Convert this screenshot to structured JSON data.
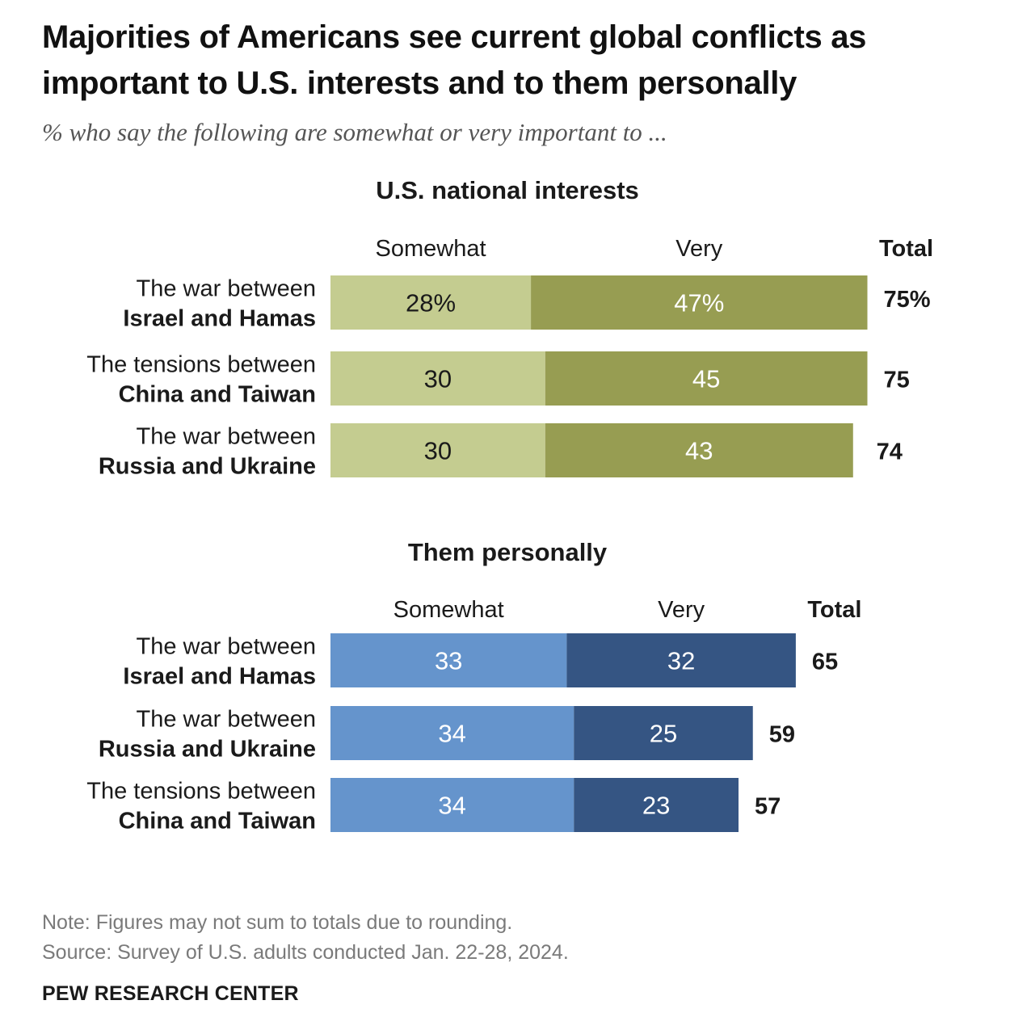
{
  "title": "Majorities of Americans see current global conflicts as important to U.S. interests and to them personally",
  "subtitle": "% who say the following are somewhat or very important to ...",
  "note": "Note: Figures may not sum to totals due to rounding.",
  "source": "Source: Survey of U.S. adults conducted Jan. 22-28, 2024.",
  "brand": "PEW RESEARCH CENTER",
  "colors": {
    "us_somewhat": "#c4cc90",
    "us_very": "#979d52",
    "personal_somewhat": "#6594cc",
    "personal_very": "#355583"
  },
  "chart_data": [
    {
      "type": "bar",
      "orientation": "horizontal",
      "stacked": true,
      "title": "U.S. national interests",
      "column_headers": {
        "somewhat": "Somewhat",
        "very": "Very",
        "total": "Total"
      },
      "categories": [
        {
          "line1": "The war between",
          "line2": "Israel and Hamas"
        },
        {
          "line1": "The tensions between",
          "line2": "China and Taiwan"
        },
        {
          "line1": "The war between",
          "line2": "Russia and Ukraine"
        }
      ],
      "series": [
        {
          "name": "Somewhat",
          "values": [
            28,
            30,
            30
          ],
          "labels": [
            "28%",
            "30",
            "30"
          ]
        },
        {
          "name": "Very",
          "values": [
            47,
            45,
            43
          ],
          "labels": [
            "47%",
            "45",
            "43"
          ]
        }
      ],
      "totals": [
        75,
        75,
        74
      ],
      "total_labels": [
        "75%",
        "75",
        "74"
      ]
    },
    {
      "type": "bar",
      "orientation": "horizontal",
      "stacked": true,
      "title": "Them personally",
      "column_headers": {
        "somewhat": "Somewhat",
        "very": "Very",
        "total": "Total"
      },
      "categories": [
        {
          "line1": "The war between",
          "line2": "Israel and Hamas"
        },
        {
          "line1": "The war between",
          "line2": "Russia and Ukraine"
        },
        {
          "line1": "The tensions between",
          "line2": "China and Taiwan"
        }
      ],
      "series": [
        {
          "name": "Somewhat",
          "values": [
            33,
            34,
            34
          ],
          "labels": [
            "33",
            "34",
            "34"
          ]
        },
        {
          "name": "Very",
          "values": [
            32,
            25,
            23
          ],
          "labels": [
            "32",
            "25",
            "23"
          ]
        }
      ],
      "totals": [
        65,
        59,
        57
      ],
      "total_labels": [
        "65",
        "59",
        "57"
      ]
    }
  ]
}
